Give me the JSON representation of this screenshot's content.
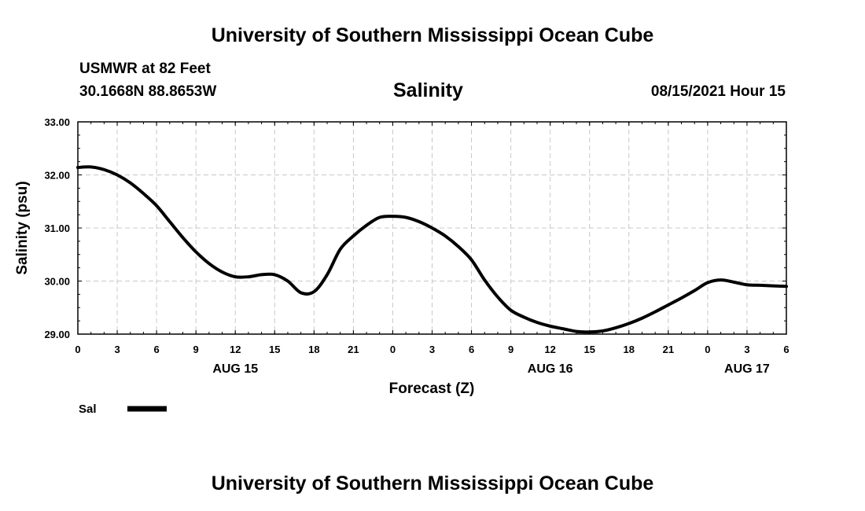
{
  "header": {
    "top_title": "University of Southern Mississippi Ocean Cube",
    "station": "USMWR at 82 Feet",
    "coords": "30.1668N  88.8653W",
    "datetime": "08/15/2021 Hour 15"
  },
  "footer": {
    "bottom_title": "University of Southern Mississippi Ocean Cube"
  },
  "chart_data": {
    "type": "line",
    "title": "Salinity",
    "xlabel": "Forecast (Z)",
    "ylabel": "Salinity (psu)",
    "ylim": [
      29.0,
      33.0
    ],
    "xlim": [
      0,
      54
    ],
    "grid": true,
    "yticks": [
      "29.00",
      "30.00",
      "31.00",
      "32.00",
      "33.00"
    ],
    "ytick_values": [
      29.0,
      30.0,
      31.0,
      32.0,
      33.0
    ],
    "xtick_values": [
      0,
      3,
      6,
      9,
      12,
      15,
      18,
      21,
      24,
      27,
      30,
      33,
      36,
      39,
      42,
      45,
      48,
      51,
      54
    ],
    "xtick_labels": [
      "0",
      "3",
      "6",
      "9",
      "12",
      "15",
      "18",
      "21",
      "0",
      "3",
      "6",
      "9",
      "12",
      "15",
      "18",
      "21",
      "0",
      "3",
      "6"
    ],
    "day_labels": [
      {
        "label": "AUG 15",
        "x": 12
      },
      {
        "label": "AUG 16",
        "x": 36
      },
      {
        "label": "AUG 17",
        "x": 51
      }
    ],
    "series": [
      {
        "name": "Sal",
        "color": "#000000",
        "x": [
          0,
          1,
          2,
          3,
          4,
          5,
          6,
          7,
          8,
          9,
          10,
          11,
          12,
          13,
          14,
          15,
          16,
          17,
          18,
          19,
          20,
          21,
          22,
          23,
          24,
          25,
          26,
          27,
          28,
          29,
          30,
          31,
          32,
          33,
          34,
          35,
          36,
          37,
          38,
          39,
          40,
          41,
          42,
          43,
          44,
          45,
          46,
          47,
          48,
          49,
          50,
          51,
          52,
          53,
          54
        ],
        "values": [
          32.14,
          32.15,
          32.1,
          32.0,
          31.85,
          31.65,
          31.42,
          31.12,
          30.82,
          30.55,
          30.33,
          30.17,
          30.08,
          30.08,
          30.12,
          30.12,
          30.0,
          29.78,
          29.8,
          30.12,
          30.6,
          30.85,
          31.05,
          31.2,
          31.22,
          31.2,
          31.12,
          31.0,
          30.85,
          30.65,
          30.4,
          30.02,
          29.7,
          29.45,
          29.32,
          29.22,
          29.15,
          29.1,
          29.05,
          29.04,
          29.06,
          29.12,
          29.2,
          29.3,
          29.42,
          29.55,
          29.68,
          29.82,
          29.97,
          30.02,
          29.98,
          29.93,
          29.92,
          29.91,
          29.9
        ]
      }
    ],
    "legend": {
      "position": "bottom-left",
      "label": "Sal"
    }
  }
}
